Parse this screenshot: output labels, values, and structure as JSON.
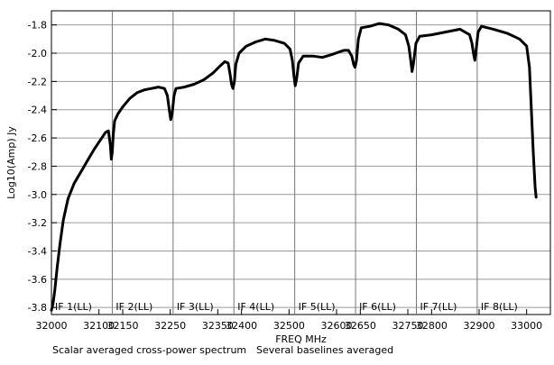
{
  "chart_data": {
    "type": "line",
    "xlabel": "FREQ MHz",
    "ylabel": "Log10(Amp) Jy",
    "xlim": [
      32000,
      33050
    ],
    "ylim": [
      -3.85,
      -1.7
    ],
    "x_ticks": [
      {
        "value": 32000,
        "label": "32000"
      },
      {
        "value": 32100,
        "label": "32100"
      },
      {
        "value": 32150,
        "label": "32150"
      },
      {
        "value": 32250,
        "label": "32250"
      },
      {
        "value": 32350,
        "label": "32350"
      },
      {
        "value": 32400,
        "label": "32400"
      },
      {
        "value": 32500,
        "label": "32500"
      },
      {
        "value": 32600,
        "label": "32600"
      },
      {
        "value": 32650,
        "label": "32650"
      },
      {
        "value": 32750,
        "label": "32750"
      },
      {
        "value": 32800,
        "label": "32800"
      },
      {
        "value": 32900,
        "label": "32900"
      },
      {
        "value": 33000,
        "label": "33000"
      }
    ],
    "y_ticks": [
      {
        "value": -1.8,
        "label": "-1.8"
      },
      {
        "value": -2.0,
        "label": "-2.0"
      },
      {
        "value": -2.2,
        "label": "-2.2"
      },
      {
        "value": -2.4,
        "label": "-2.4"
      },
      {
        "value": -2.6,
        "label": "-2.6"
      },
      {
        "value": -2.8,
        "label": "-2.8"
      },
      {
        "value": -3.0,
        "label": "-3.0"
      },
      {
        "value": -3.2,
        "label": "-3.2"
      },
      {
        "value": -3.4,
        "label": "-3.4"
      },
      {
        "value": -3.6,
        "label": "-3.6"
      },
      {
        "value": -3.8,
        "label": "-3.8"
      }
    ],
    "if_boundaries": [
      32000,
      32128,
      32256,
      32384,
      32512,
      32640,
      32768,
      32896,
      33024
    ],
    "if_labels": [
      "IF 1(LL)",
      "IF 2(LL)",
      "IF 3(LL)",
      "IF 4(LL)",
      "IF 5(LL)",
      "IF 6(LL)",
      "IF 7(LL)",
      "IF 8(LL)"
    ],
    "footnotes": [
      "Scalar averaged cross-power spectrum",
      "Several baselines averaged"
    ],
    "series": [
      {
        "values": [
          [
            32000,
            -3.82
          ],
          [
            32003,
            -3.78
          ],
          [
            32007,
            -3.68
          ],
          [
            32012,
            -3.52
          ],
          [
            32018,
            -3.35
          ],
          [
            32025,
            -3.18
          ],
          [
            32035,
            -3.03
          ],
          [
            32048,
            -2.92
          ],
          [
            32062,
            -2.84
          ],
          [
            32076,
            -2.76
          ],
          [
            32090,
            -2.68
          ],
          [
            32104,
            -2.61
          ],
          [
            32114,
            -2.56
          ],
          [
            32120,
            -2.55
          ],
          [
            32124,
            -2.65
          ],
          [
            32126,
            -2.75
          ],
          [
            32128,
            -2.7
          ],
          [
            32130,
            -2.58
          ],
          [
            32133,
            -2.48
          ],
          [
            32140,
            -2.43
          ],
          [
            32150,
            -2.38
          ],
          [
            32165,
            -2.32
          ],
          [
            32180,
            -2.28
          ],
          [
            32195,
            -2.26
          ],
          [
            32210,
            -2.25
          ],
          [
            32225,
            -2.24
          ],
          [
            32238,
            -2.25
          ],
          [
            32244,
            -2.3
          ],
          [
            32248,
            -2.4
          ],
          [
            32251,
            -2.47
          ],
          [
            32254,
            -2.43
          ],
          [
            32258,
            -2.3
          ],
          [
            32262,
            -2.25
          ],
          [
            32280,
            -2.24
          ],
          [
            32300,
            -2.22
          ],
          [
            32320,
            -2.19
          ],
          [
            32340,
            -2.14
          ],
          [
            32355,
            -2.09
          ],
          [
            32365,
            -2.06
          ],
          [
            32372,
            -2.07
          ],
          [
            32376,
            -2.15
          ],
          [
            32379,
            -2.22
          ],
          [
            32382,
            -2.25
          ],
          [
            32385,
            -2.2
          ],
          [
            32388,
            -2.08
          ],
          [
            32395,
            -2.0
          ],
          [
            32410,
            -1.95
          ],
          [
            32430,
            -1.92
          ],
          [
            32450,
            -1.9
          ],
          [
            32470,
            -1.91
          ],
          [
            32490,
            -1.93
          ],
          [
            32502,
            -1.97
          ],
          [
            32507,
            -2.05
          ],
          [
            32510,
            -2.15
          ],
          [
            32513,
            -2.23
          ],
          [
            32516,
            -2.18
          ],
          [
            32520,
            -2.07
          ],
          [
            32530,
            -2.02
          ],
          [
            32550,
            -2.02
          ],
          [
            32570,
            -2.03
          ],
          [
            32590,
            -2.01
          ],
          [
            32615,
            -1.98
          ],
          [
            32625,
            -1.98
          ],
          [
            32632,
            -2.02
          ],
          [
            32636,
            -2.08
          ],
          [
            32639,
            -2.1
          ],
          [
            32642,
            -2.05
          ],
          [
            32646,
            -1.9
          ],
          [
            32652,
            -1.82
          ],
          [
            32670,
            -1.81
          ],
          [
            32690,
            -1.79
          ],
          [
            32710,
            -1.8
          ],
          [
            32730,
            -1.83
          ],
          [
            32745,
            -1.87
          ],
          [
            32752,
            -1.95
          ],
          [
            32756,
            -2.05
          ],
          [
            32759,
            -2.13
          ],
          [
            32762,
            -2.07
          ],
          [
            32767,
            -1.93
          ],
          [
            32775,
            -1.88
          ],
          [
            32800,
            -1.87
          ],
          [
            32830,
            -1.85
          ],
          [
            32860,
            -1.83
          ],
          [
            32880,
            -1.87
          ],
          [
            32885,
            -1.93
          ],
          [
            32888,
            -2.0
          ],
          [
            32891,
            -2.05
          ],
          [
            32894,
            -1.97
          ],
          [
            32898,
            -1.85
          ],
          [
            32905,
            -1.81
          ],
          [
            32930,
            -1.83
          ],
          [
            32960,
            -1.86
          ],
          [
            32985,
            -1.9
          ],
          [
            33000,
            -1.95
          ],
          [
            33006,
            -2.1
          ],
          [
            33010,
            -2.4
          ],
          [
            33014,
            -2.7
          ],
          [
            33018,
            -2.95
          ],
          [
            33020,
            -3.02
          ]
        ]
      }
    ]
  }
}
